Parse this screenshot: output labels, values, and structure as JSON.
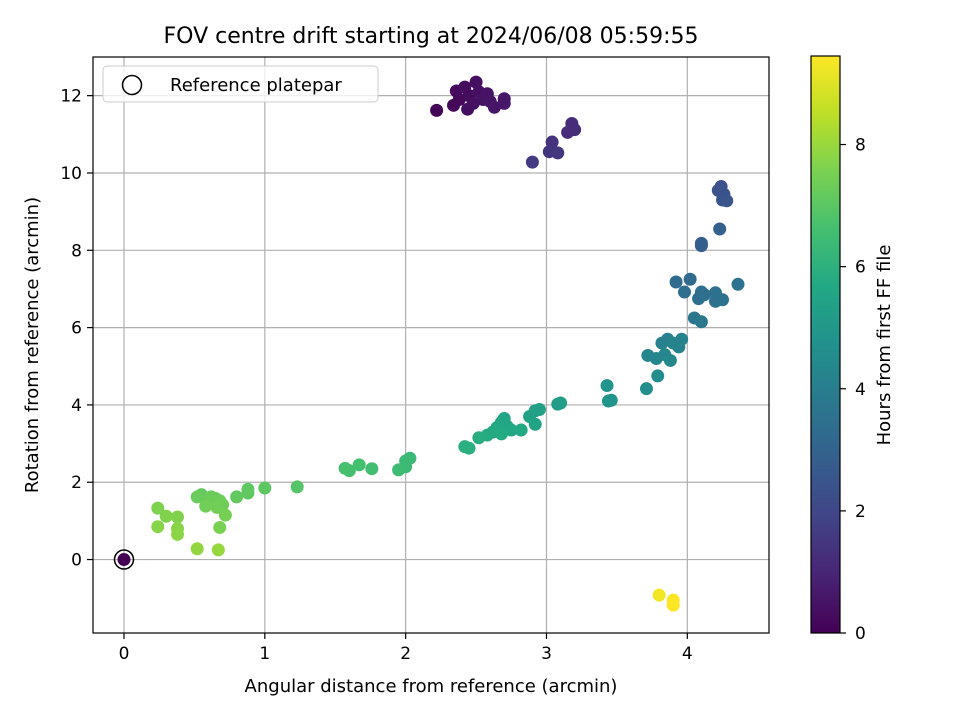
{
  "chart_data": {
    "type": "scatter",
    "title": "FOV centre drift starting at 2024/06/08 05:59:55",
    "xlabel": "Angular distance from reference (arcmin)",
    "ylabel": "Rotation from reference (arcmin)",
    "xlim": [
      -0.22,
      4.58
    ],
    "ylim": [
      -1.9,
      13.0
    ],
    "x_ticks": [
      0,
      1,
      2,
      3,
      4
    ],
    "y_ticks": [
      0,
      2,
      4,
      6,
      8,
      10,
      12
    ],
    "grid": true,
    "legend": {
      "placement": "top-left",
      "entries": [
        "Reference platepar"
      ]
    },
    "colorbar": {
      "label": "Hours from first FF file",
      "colormap": "viridis",
      "range": [
        0,
        9.45
      ],
      "ticks": [
        0,
        2,
        4,
        6,
        8
      ]
    },
    "reference_point": {
      "x": 0,
      "y": 0,
      "hours": 0
    },
    "points": [
      {
        "x": 2.22,
        "y": 11.62,
        "hours": 0.1
      },
      {
        "x": 2.34,
        "y": 11.75,
        "hours": 0.15
      },
      {
        "x": 2.38,
        "y": 11.9,
        "hours": 0.2
      },
      {
        "x": 2.36,
        "y": 12.12,
        "hours": 0.25
      },
      {
        "x": 2.42,
        "y": 12.22,
        "hours": 0.3
      },
      {
        "x": 2.45,
        "y": 12.0,
        "hours": 0.3
      },
      {
        "x": 2.44,
        "y": 11.65,
        "hours": 0.35
      },
      {
        "x": 2.5,
        "y": 12.35,
        "hours": 0.35
      },
      {
        "x": 2.48,
        "y": 11.8,
        "hours": 0.4
      },
      {
        "x": 2.52,
        "y": 12.1,
        "hours": 0.4
      },
      {
        "x": 2.55,
        "y": 11.9,
        "hours": 0.45
      },
      {
        "x": 2.58,
        "y": 12.05,
        "hours": 0.45
      },
      {
        "x": 2.6,
        "y": 11.85,
        "hours": 0.5
      },
      {
        "x": 2.63,
        "y": 11.7,
        "hours": 0.55
      },
      {
        "x": 2.7,
        "y": 11.92,
        "hours": 0.6
      },
      {
        "x": 2.7,
        "y": 11.8,
        "hours": 0.6
      },
      {
        "x": 3.18,
        "y": 11.28,
        "hours": 1.2
      },
      {
        "x": 3.2,
        "y": 11.12,
        "hours": 1.2
      },
      {
        "x": 3.15,
        "y": 11.05,
        "hours": 1.25
      },
      {
        "x": 3.04,
        "y": 10.8,
        "hours": 1.4
      },
      {
        "x": 3.02,
        "y": 10.55,
        "hours": 1.45
      },
      {
        "x": 3.08,
        "y": 10.52,
        "hours": 1.5
      },
      {
        "x": 2.9,
        "y": 10.28,
        "hours": 1.6
      },
      {
        "x": 4.22,
        "y": 9.55,
        "hours": 2.4
      },
      {
        "x": 4.24,
        "y": 9.65,
        "hours": 2.4
      },
      {
        "x": 4.26,
        "y": 9.45,
        "hours": 2.45
      },
      {
        "x": 4.25,
        "y": 9.3,
        "hours": 2.5
      },
      {
        "x": 4.28,
        "y": 9.28,
        "hours": 2.5
      },
      {
        "x": 4.1,
        "y": 8.18,
        "hours": 2.8
      },
      {
        "x": 4.1,
        "y": 8.12,
        "hours": 2.8
      },
      {
        "x": 4.23,
        "y": 8.55,
        "hours": 2.9
      },
      {
        "x": 3.92,
        "y": 7.18,
        "hours": 3.3
      },
      {
        "x": 4.02,
        "y": 7.25,
        "hours": 3.3
      },
      {
        "x": 3.98,
        "y": 6.92,
        "hours": 3.4
      },
      {
        "x": 4.08,
        "y": 6.75,
        "hours": 3.4
      },
      {
        "x": 4.1,
        "y": 6.92,
        "hours": 3.45
      },
      {
        "x": 4.12,
        "y": 6.85,
        "hours": 3.45
      },
      {
        "x": 4.2,
        "y": 6.9,
        "hours": 3.5
      },
      {
        "x": 4.2,
        "y": 6.68,
        "hours": 3.5
      },
      {
        "x": 4.25,
        "y": 6.72,
        "hours": 3.55
      },
      {
        "x": 4.36,
        "y": 7.12,
        "hours": 3.55
      },
      {
        "x": 4.05,
        "y": 6.25,
        "hours": 3.7
      },
      {
        "x": 4.1,
        "y": 6.15,
        "hours": 3.75
      },
      {
        "x": 3.82,
        "y": 5.6,
        "hours": 4.1
      },
      {
        "x": 3.86,
        "y": 5.7,
        "hours": 4.1
      },
      {
        "x": 3.9,
        "y": 5.6,
        "hours": 4.15
      },
      {
        "x": 3.94,
        "y": 5.5,
        "hours": 4.2
      },
      {
        "x": 3.96,
        "y": 5.7,
        "hours": 4.2
      },
      {
        "x": 3.72,
        "y": 5.28,
        "hours": 4.3
      },
      {
        "x": 3.78,
        "y": 5.2,
        "hours": 4.35
      },
      {
        "x": 3.84,
        "y": 5.3,
        "hours": 4.35
      },
      {
        "x": 3.88,
        "y": 5.15,
        "hours": 4.4
      },
      {
        "x": 3.79,
        "y": 4.75,
        "hours": 4.55
      },
      {
        "x": 3.71,
        "y": 4.42,
        "hours": 4.65
      },
      {
        "x": 3.43,
        "y": 4.5,
        "hours": 4.85
      },
      {
        "x": 3.44,
        "y": 4.1,
        "hours": 4.9
      },
      {
        "x": 3.46,
        "y": 4.12,
        "hours": 4.9
      },
      {
        "x": 3.08,
        "y": 4.02,
        "hours": 5.2
      },
      {
        "x": 3.1,
        "y": 4.05,
        "hours": 5.2
      },
      {
        "x": 2.92,
        "y": 3.85,
        "hours": 5.35
      },
      {
        "x": 2.95,
        "y": 3.88,
        "hours": 5.35
      },
      {
        "x": 2.88,
        "y": 3.7,
        "hours": 5.4
      },
      {
        "x": 2.92,
        "y": 3.5,
        "hours": 5.45
      },
      {
        "x": 2.7,
        "y": 3.65,
        "hours": 5.55
      },
      {
        "x": 2.68,
        "y": 3.55,
        "hours": 5.6
      },
      {
        "x": 2.72,
        "y": 3.45,
        "hours": 5.6
      },
      {
        "x": 2.75,
        "y": 3.35,
        "hours": 5.65
      },
      {
        "x": 2.65,
        "y": 3.42,
        "hours": 5.65
      },
      {
        "x": 2.62,
        "y": 3.3,
        "hours": 5.7
      },
      {
        "x": 2.58,
        "y": 3.22,
        "hours": 5.75
      },
      {
        "x": 2.68,
        "y": 3.25,
        "hours": 5.75
      },
      {
        "x": 2.82,
        "y": 3.35,
        "hours": 5.7
      },
      {
        "x": 2.52,
        "y": 3.15,
        "hours": 5.85
      },
      {
        "x": 2.42,
        "y": 2.92,
        "hours": 5.95
      },
      {
        "x": 2.45,
        "y": 2.88,
        "hours": 5.95
      },
      {
        "x": 2.03,
        "y": 2.62,
        "hours": 6.35
      },
      {
        "x": 2.0,
        "y": 2.55,
        "hours": 6.4
      },
      {
        "x": 2.0,
        "y": 2.4,
        "hours": 6.4
      },
      {
        "x": 1.95,
        "y": 2.32,
        "hours": 6.45
      },
      {
        "x": 1.76,
        "y": 2.35,
        "hours": 6.55
      },
      {
        "x": 1.67,
        "y": 2.45,
        "hours": 6.6
      },
      {
        "x": 1.6,
        "y": 2.3,
        "hours": 6.65
      },
      {
        "x": 1.57,
        "y": 2.36,
        "hours": 6.65
      },
      {
        "x": 1.23,
        "y": 1.88,
        "hours": 6.9
      },
      {
        "x": 1.0,
        "y": 1.85,
        "hours": 7.05
      },
      {
        "x": 0.88,
        "y": 1.82,
        "hours": 7.1
      },
      {
        "x": 0.88,
        "y": 1.72,
        "hours": 7.1
      },
      {
        "x": 0.8,
        "y": 1.62,
        "hours": 7.15
      },
      {
        "x": 0.55,
        "y": 1.68,
        "hours": 7.2
      },
      {
        "x": 0.52,
        "y": 1.62,
        "hours": 7.25
      },
      {
        "x": 0.58,
        "y": 1.55,
        "hours": 7.25
      },
      {
        "x": 0.62,
        "y": 1.62,
        "hours": 7.3
      },
      {
        "x": 0.65,
        "y": 1.58,
        "hours": 7.3
      },
      {
        "x": 0.68,
        "y": 1.52,
        "hours": 7.35
      },
      {
        "x": 0.7,
        "y": 1.42,
        "hours": 7.35
      },
      {
        "x": 0.58,
        "y": 1.38,
        "hours": 7.4
      },
      {
        "x": 0.66,
        "y": 1.35,
        "hours": 7.4
      },
      {
        "x": 0.72,
        "y": 1.15,
        "hours": 7.45
      },
      {
        "x": 0.68,
        "y": 0.83,
        "hours": 7.55
      },
      {
        "x": 0.24,
        "y": 1.33,
        "hours": 7.6
      },
      {
        "x": 0.3,
        "y": 1.12,
        "hours": 7.65
      },
      {
        "x": 0.38,
        "y": 1.1,
        "hours": 7.65
      },
      {
        "x": 0.24,
        "y": 0.85,
        "hours": 7.75
      },
      {
        "x": 0.38,
        "y": 0.8,
        "hours": 7.75
      },
      {
        "x": 0.38,
        "y": 0.65,
        "hours": 7.8
      },
      {
        "x": 0.52,
        "y": 0.28,
        "hours": 7.9
      },
      {
        "x": 0.67,
        "y": 0.25,
        "hours": 7.95
      },
      {
        "x": 3.8,
        "y": -0.92,
        "hours": 9.3
      },
      {
        "x": 3.9,
        "y": -1.05,
        "hours": 9.4
      },
      {
        "x": 3.9,
        "y": -1.18,
        "hours": 9.45
      }
    ]
  }
}
